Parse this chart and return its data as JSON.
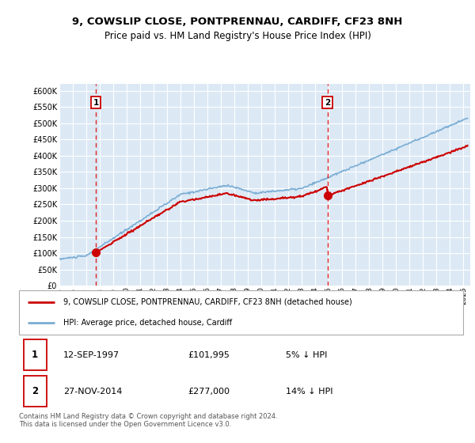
{
  "title_line1": "9, COWSLIP CLOSE, PONTPRENNAU, CARDIFF, CF23 8NH",
  "title_line2": "Price paid vs. HM Land Registry's House Price Index (HPI)",
  "background_color": "#dce9f5",
  "plot_bg_color": "#dce9f5",
  "grid_color": "#ffffff",
  "sale1_date_num": 1997.7,
  "sale1_price": 101995,
  "sale2_date_num": 2014.9,
  "sale2_price": 277000,
  "ylabel_ticks": [
    0,
    50000,
    100000,
    150000,
    200000,
    250000,
    300000,
    350000,
    400000,
    450000,
    500000,
    550000,
    600000
  ],
  "legend_label1": "9, COWSLIP CLOSE, PONTPRENNAU, CARDIFF, CF23 8NH (detached house)",
  "legend_label2": "HPI: Average price, detached house, Cardiff",
  "annotation1_label": "1",
  "annotation1_date": "12-SEP-1997",
  "annotation1_price": "£101,995",
  "annotation1_pct": "5% ↓ HPI",
  "annotation2_label": "2",
  "annotation2_date": "27-NOV-2014",
  "annotation2_price": "£277,000",
  "annotation2_pct": "14% ↓ HPI",
  "footer_text": "Contains HM Land Registry data © Crown copyright and database right 2024.\nThis data is licensed under the Open Government Licence v3.0.",
  "line_color_property": "#cc0000",
  "line_color_hpi": "#7aadd4",
  "xmin": 1995.0,
  "xmax": 2025.5,
  "ylim_max": 620000
}
